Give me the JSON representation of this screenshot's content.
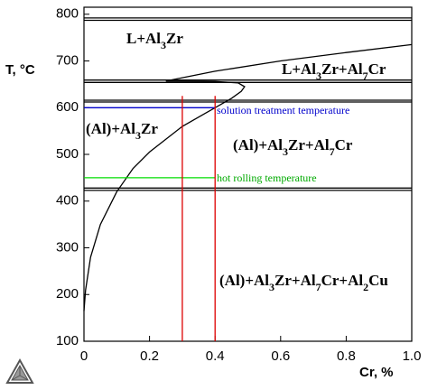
{
  "chart_data": {
    "type": "line",
    "y_label": "T, °C",
    "x_label": "Cr, %",
    "xlim": [
      0,
      1
    ],
    "ylim": [
      100,
      815
    ],
    "xticks": [
      0,
      0.2,
      0.4,
      0.6,
      0.8,
      {
        "value": 1,
        "label": "1.0"
      }
    ],
    "yticks": [
      100,
      200,
      300,
      400,
      500,
      600,
      700,
      800
    ],
    "series": [
      {
        "color": "#000000",
        "x": [
          0,
          1
        ],
        "values": [
          792,
          792
        ]
      },
      {
        "color": "#000000",
        "x": [
          0,
          1
        ],
        "values": [
          787,
          787
        ]
      },
      {
        "color": "#000000",
        "x": [
          0,
          1
        ],
        "values": [
          659,
          659
        ]
      },
      {
        "color": "#000000",
        "x": [
          0,
          1
        ],
        "values": [
          654,
          654
        ]
      },
      {
        "color": "#000000",
        "x": [
          0,
          1
        ],
        "values": [
          616,
          616
        ]
      },
      {
        "color": "#000000",
        "x": [
          0,
          1
        ],
        "values": [
          612,
          612
        ]
      },
      {
        "color": "#000000",
        "x": [
          0,
          1
        ],
        "values": [
          428,
          428
        ]
      },
      {
        "color": "#000000",
        "x": [
          0,
          1
        ],
        "values": [
          423,
          423
        ]
      },
      {
        "color": "#000000",
        "x": [
          0.25,
          0.4,
          0.6,
          0.8,
          1
        ],
        "values": [
          657,
          678,
          700,
          718,
          735
        ]
      },
      {
        "color": "#000000",
        "x": [
          0,
          0.005,
          0.02,
          0.05,
          0.1,
          0.15,
          0.2,
          0.3,
          0.4,
          0.45,
          0.48,
          0.49,
          0.47,
          0.4,
          0.25
        ],
        "values": [
          165,
          210,
          280,
          350,
          420,
          470,
          505,
          560,
          600,
          620,
          635,
          645,
          653,
          656,
          657
        ]
      },
      {
        "color": "#0000cc",
        "x": [
          0,
          0.4
        ],
        "values": [
          600,
          600
        ]
      },
      {
        "color": "#00dd00",
        "x": [
          0,
          0.4
        ],
        "values": [
          450,
          450
        ]
      },
      {
        "color": "#dd0000",
        "x": [
          0.3,
          0.3
        ],
        "values": [
          625,
          100
        ]
      },
      {
        "color": "#dd0000",
        "x": [
          0.4,
          0.4
        ],
        "values": [
          625,
          100
        ]
      }
    ],
    "regions": [
      "L+Al3Zr",
      "L+Al3Zr+Al7Cr",
      "(Al)+Al3Zr",
      "(Al)+Al3Zr+Al7Cr",
      "(Al)+Al3Zr+Al7Cr+Al2Cu"
    ],
    "annotations": [
      {
        "text": "solution treatment temperature",
        "color": "#0000cc"
      },
      {
        "text": "hot rolling temperature",
        "color": "#00aa00"
      }
    ]
  }
}
